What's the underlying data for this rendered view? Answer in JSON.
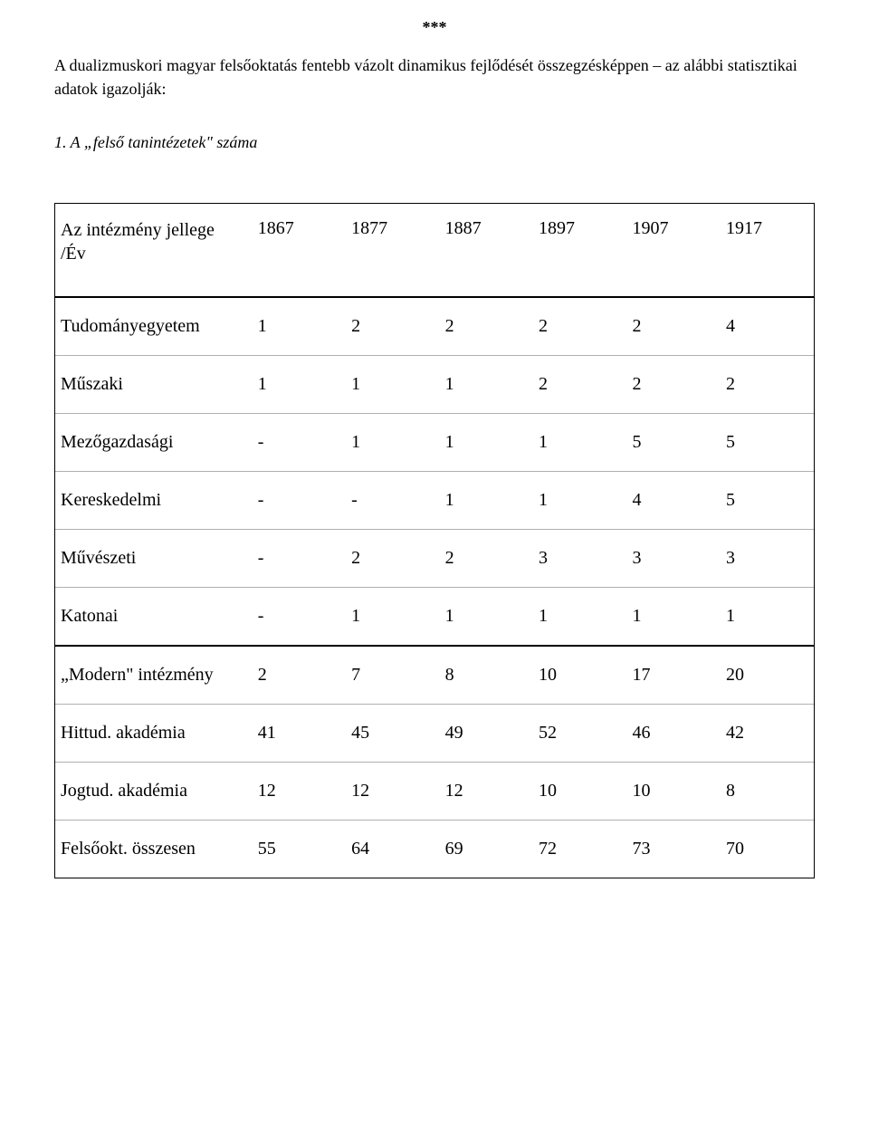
{
  "page": {
    "background_color": "#ffffff",
    "text_color": "#000000",
    "font_family": "Times New Roman",
    "body_fontsize_pt": 13
  },
  "header": {
    "stars": "***",
    "intro": "A dualizmuskori magyar felsőoktatás fentebb vázolt dinamikus fejlődését összegzésképpen – az alábbi statisztikai adatok igazolják:",
    "subtitle": "1. A „felső tanintézetek\" száma"
  },
  "table": {
    "type": "table",
    "border_color_outer": "#000000",
    "border_color_inner": "#b0b0b0",
    "header_label_line1": "Az intézmény jellege",
    "header_label_line2": "/Év",
    "years": [
      "1867",
      "1877",
      "1887",
      "1897",
      "1907",
      "1917"
    ],
    "col_widths_pct": [
      26,
      12.33,
      12.33,
      12.33,
      12.33,
      12.33,
      12.33
    ],
    "fontsize_pt": 15,
    "sections": [
      {
        "rows": [
          {
            "label": "Tudományegyetem",
            "values": [
              "1",
              "2",
              "2",
              "2",
              "2",
              "4"
            ]
          },
          {
            "label": "Műszaki",
            "values": [
              "1",
              "1",
              "1",
              "2",
              "2",
              "2"
            ]
          },
          {
            "label": "Mezőgazdasági",
            "values": [
              "-",
              "1",
              "1",
              "1",
              "5",
              "5"
            ]
          },
          {
            "label": "Kereskedelmi",
            "values": [
              "-",
              "-",
              "1",
              "1",
              "4",
              "5"
            ]
          },
          {
            "label": "Művészeti",
            "values": [
              "-",
              "2",
              "2",
              "3",
              "3",
              "3"
            ]
          },
          {
            "label": "Katonai",
            "values": [
              "-",
              "1",
              "1",
              "1",
              "1",
              "1"
            ]
          }
        ]
      },
      {
        "rows": [
          {
            "label": "„Modern\" intézmény",
            "values": [
              "2",
              "7",
              "8",
              "10",
              "17",
              "20"
            ]
          },
          {
            "label": "Hittud. akadémia",
            "values": [
              "41",
              "45",
              "49",
              "52",
              "46",
              "42"
            ]
          },
          {
            "label": "Jogtud. akadémia",
            "values": [
              "12",
              "12",
              "12",
              "10",
              "10",
              "8"
            ]
          },
          {
            "label": "Felsőokt. összesen",
            "values": [
              "55",
              "64",
              "69",
              "72",
              "73",
              "70"
            ]
          }
        ]
      }
    ]
  }
}
